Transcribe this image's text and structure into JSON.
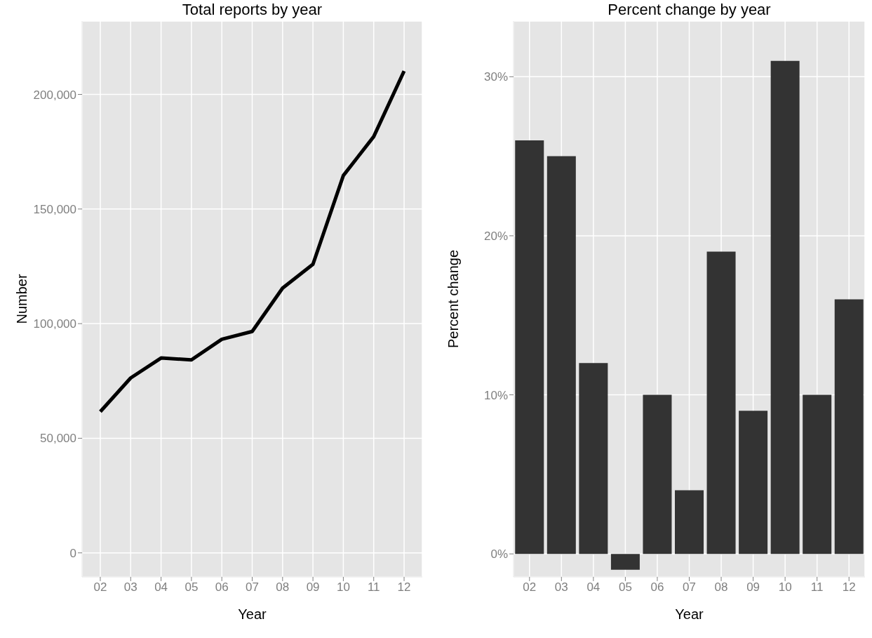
{
  "chart_data": [
    {
      "type": "line",
      "title": "Total reports by year",
      "xlabel": "Year",
      "ylabel": "Number",
      "categories": [
        "02",
        "03",
        "04",
        "05",
        "06",
        "07",
        "08",
        "09",
        "10",
        "11",
        "12"
      ],
      "series": [
        {
          "color": "#000000",
          "values": [
            61600,
            76300,
            85000,
            84200,
            93200,
            96600,
            115500,
            125900,
            164600,
            181600,
            210200
          ]
        }
      ],
      "ylim": [
        -10500,
        232000
      ],
      "yticks": [
        {
          "value": 0,
          "label": "0"
        },
        {
          "value": 50000,
          "label": "50,000"
        },
        {
          "value": 100000,
          "label": "100,000"
        },
        {
          "value": 150000,
          "label": "150,000"
        },
        {
          "value": 200000,
          "label": "200,000"
        }
      ],
      "grid": true,
      "legend": false,
      "marker": "none",
      "line_style": "solid"
    },
    {
      "type": "bar",
      "title": "Percent change by year",
      "xlabel": "Year",
      "ylabel": "Percent change",
      "categories": [
        "02",
        "03",
        "04",
        "05",
        "06",
        "07",
        "08",
        "09",
        "10",
        "11",
        "12"
      ],
      "values": [
        26,
        25,
        12,
        -1,
        10,
        4,
        19,
        9,
        31,
        10,
        16
      ],
      "color": "#333333",
      "ylim": [
        -1.45,
        33.5
      ],
      "yticks": [
        {
          "value": 0,
          "label": "0%"
        },
        {
          "value": 10,
          "label": "10%"
        },
        {
          "value": 20,
          "label": "20%"
        },
        {
          "value": 30,
          "label": "30%"
        }
      ],
      "grid": true,
      "legend": false
    }
  ]
}
